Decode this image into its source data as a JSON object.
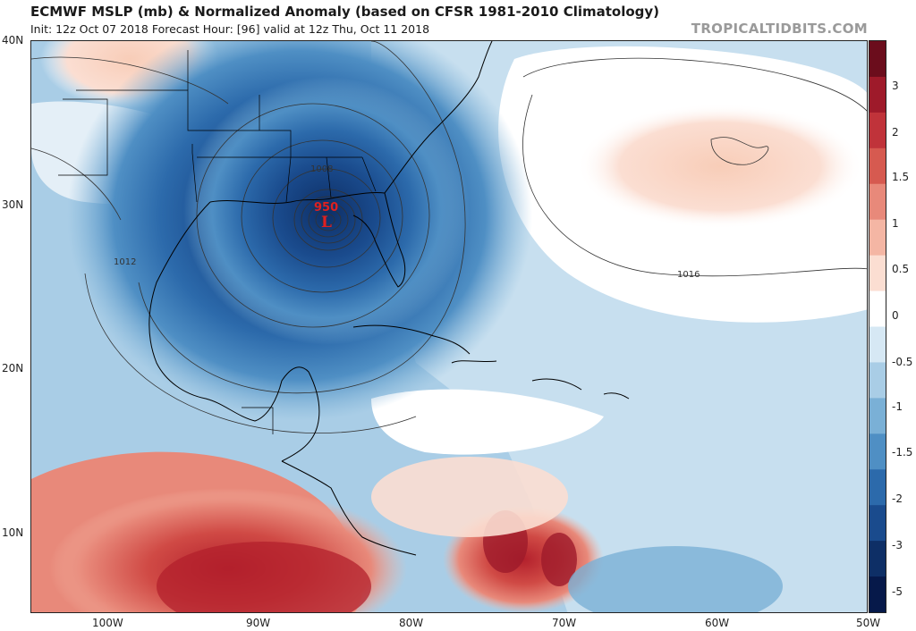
{
  "header": {
    "title": "ECMWF MSLP (mb) & Normalized Anomaly (based on CFSR 1981-2010 Climatology)",
    "subtitle": "Init: 12z Oct 07 2018   Forecast Hour: [96]   valid at 12z Thu, Oct 11 2018",
    "brand": "TROPICALTIDBITS.COM"
  },
  "map": {
    "lat_labels": [
      "40N",
      "30N",
      "20N",
      "10N"
    ],
    "lon_labels": [
      "100W",
      "90W",
      "80W",
      "70W",
      "60W",
      "50W"
    ],
    "isobar_labels": [
      "1008",
      "1012",
      "1016"
    ],
    "low_center": {
      "value": "950",
      "symbol": "L",
      "color": "#e02020"
    }
  },
  "colorbar": {
    "labels": [
      "3",
      "2",
      "1.5",
      "1",
      "0.5",
      "0",
      "-0.5",
      "-1",
      "-1.5",
      "-2",
      "-3",
      "-5"
    ],
    "colors": [
      "#6b0d1c",
      "#9e1a2a",
      "#c0333a",
      "#d65a50",
      "#e8897a",
      "#f4b6a4",
      "#fbded2",
      "#ffffff",
      "#d6e8f4",
      "#a9cde6",
      "#7ab0d6",
      "#4f8fc4",
      "#2c6aab",
      "#1a4b8d",
      "#0e2f66",
      "#06194a"
    ]
  }
}
